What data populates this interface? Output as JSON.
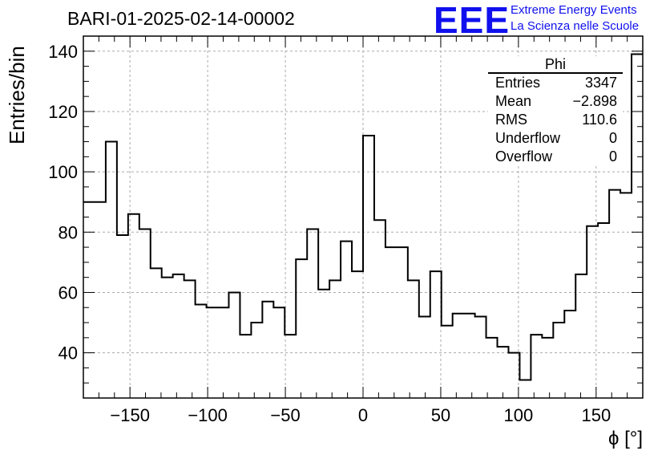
{
  "title": "BARI-01-2025-02-14-00002",
  "logo": {
    "mark": "EEE",
    "line1": "Extreme Energy Events",
    "line2": "La Scienza nelle Scuole",
    "color": "#1010ee"
  },
  "stats_box": {
    "name": "Phi",
    "rows": [
      {
        "label": "Entries",
        "value": "3347"
      },
      {
        "label": "Mean",
        "value": "−2.898"
      },
      {
        "label": "RMS",
        "value": "110.6"
      },
      {
        "label": "Underflow",
        "value": "0"
      },
      {
        "label": "Overflow",
        "value": "0"
      }
    ]
  },
  "chart_data": {
    "type": "bar",
    "style": "step-histogram",
    "title": "BARI-01-2025-02-14-00002",
    "xlabel": "ϕ [°]",
    "ylabel": "Entries/bin",
    "xlim": [
      -180,
      180
    ],
    "ylim": [
      25,
      145
    ],
    "bin_width": 7.2,
    "x_ticks": [
      -150,
      -100,
      -50,
      0,
      50,
      100,
      150
    ],
    "x_tick_labels": [
      "−150",
      "−100",
      "−50",
      "0",
      "50",
      "100",
      "150"
    ],
    "y_ticks": [
      40,
      60,
      80,
      100,
      120,
      140
    ],
    "y_tick_labels": [
      "40",
      "60",
      "80",
      "100",
      "120",
      "140"
    ],
    "grid": true,
    "legend": "top-right stats box",
    "values": [
      90,
      90,
      110,
      79,
      86,
      81,
      68,
      65,
      66,
      64,
      56,
      55,
      55,
      60,
      46,
      50,
      57,
      55,
      46,
      71,
      81,
      61,
      64,
      77,
      67,
      112,
      84,
      75,
      75,
      64,
      52,
      67,
      49,
      53,
      53,
      52,
      45,
      42,
      40,
      31,
      46,
      45,
      50,
      54,
      66,
      82,
      83,
      94,
      93,
      139
    ]
  }
}
